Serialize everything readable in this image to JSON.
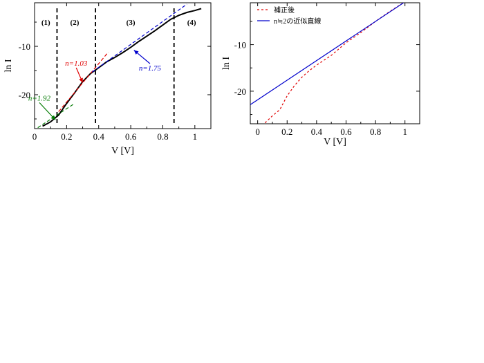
{
  "chart_data": [
    {
      "type": "line",
      "xlabel": "V [V]",
      "ylabel": "ln I",
      "xlim": [
        0,
        1.1
      ],
      "ylim": [
        -27,
        -1
      ],
      "xticks": [
        0,
        0.2,
        0.4,
        0.6,
        0.8,
        1
      ],
      "xtick_labels": [
        "0",
        "0.2",
        "0.4",
        "0.6",
        "0.8",
        "1"
      ],
      "yticks": [
        -20,
        -10
      ],
      "ytick_labels": [
        "-20",
        "-10"
      ],
      "region_boundaries": [
        0.14,
        0.38,
        0.87
      ],
      "region_labels": [
        {
          "text": "(1)",
          "x": 0.07
        },
        {
          "text": "(2)",
          "x": 0.25
        },
        {
          "text": "(3)",
          "x": 0.6
        },
        {
          "text": "(4)",
          "x": 0.98
        }
      ],
      "series": [
        {
          "style": "solid",
          "color": "#000000",
          "x": [
            0.05,
            0.1,
            0.15,
            0.2,
            0.25,
            0.3,
            0.35,
            0.38,
            0.45,
            0.5,
            0.55,
            0.6,
            0.65,
            0.7,
            0.75,
            0.8,
            0.85,
            0.9,
            0.95,
            1.0,
            1.04
          ],
          "y": [
            -26.5,
            -25.6,
            -24.2,
            -21.8,
            -19.6,
            -17.3,
            -15.6,
            -14.9,
            -13.2,
            -12.3,
            -11.3,
            -10.2,
            -9.0,
            -7.9,
            -6.8,
            -5.6,
            -4.4,
            -3.6,
            -3.0,
            -2.6,
            -2.2
          ]
        },
        {
          "name": "n=1.92",
          "style": "dashed",
          "color": "#007a00",
          "x": [
            0.02,
            0.25
          ],
          "y": [
            -26.8,
            -21.8
          ]
        },
        {
          "name": "n=1.03",
          "style": "dashed",
          "color": "#e00000",
          "x": [
            0.15,
            0.46
          ],
          "y": [
            -23.5,
            -11.2
          ]
        },
        {
          "name": "n=1.75",
          "style": "dashed",
          "color": "#0000cc",
          "x": [
            0.36,
            0.95
          ],
          "y": [
            -15.3,
            -1.3
          ]
        }
      ],
      "annotations": [
        {
          "text": "n=1.92",
          "color": "#007a00",
          "x": 0.03,
          "y": -21.2,
          "arrow_to": [
            0.13,
            -25.2
          ]
        },
        {
          "text": "n=1.03",
          "color": "#e00000",
          "x": 0.26,
          "y": -14.0,
          "arrow_to": [
            0.3,
            -17.5
          ]
        },
        {
          "text": "n=1.75",
          "color": "#0000cc",
          "x": 0.72,
          "y": -15.0,
          "arrow_to": [
            0.62,
            -10.8
          ]
        }
      ]
    },
    {
      "type": "line",
      "xlabel": "V [V]",
      "ylabel": "ln I",
      "xlim": [
        -0.05,
        1.1
      ],
      "ylim": [
        -27,
        -1
      ],
      "xticks": [
        0,
        0.2,
        0.4,
        0.6,
        0.8,
        1
      ],
      "xtick_labels": [
        "0",
        "0.2",
        "0.4",
        "0.6",
        "0.8",
        "1"
      ],
      "yticks": [
        -20,
        -10
      ],
      "ytick_labels": [
        "-20",
        "-10"
      ],
      "legend": "top-left",
      "series": [
        {
          "name": "補正後",
          "style": "dashed",
          "color": "#e00000",
          "x": [
            0.05,
            0.1,
            0.15,
            0.2,
            0.25,
            0.3,
            0.35,
            0.4,
            0.5,
            0.6,
            0.7,
            0.8,
            0.9,
            1.0
          ],
          "y": [
            -26.8,
            -25.3,
            -24.0,
            -21.0,
            -18.8,
            -17.0,
            -15.6,
            -14.4,
            -12.3,
            -9.6,
            -7.4,
            -5.0,
            -2.8,
            -0.8
          ]
        },
        {
          "name": "n≒2の近似直線",
          "style": "solid",
          "color": "#0000cc",
          "x": [
            -0.05,
            1.0
          ],
          "y": [
            -22.9,
            -0.8
          ]
        }
      ]
    }
  ]
}
